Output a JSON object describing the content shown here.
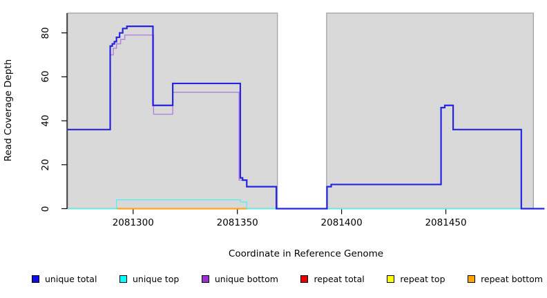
{
  "axes": {
    "x_label": "Coordinate in Reference Genome",
    "y_label": "Read Coverage Depth"
  },
  "legend": {
    "items": [
      {
        "label": "unique total",
        "swatch": "#0d0de8"
      },
      {
        "label": "unique top",
        "swatch": "#00ffff"
      },
      {
        "label": "unique bottom",
        "swatch": "#9932cc"
      },
      {
        "label": "repeat total",
        "swatch": "#e80000"
      },
      {
        "label": "repeat top",
        "swatch": "#ffff00"
      },
      {
        "label": "repeat bottom",
        "swatch": "#ffa500"
      }
    ]
  },
  "chart_data": {
    "type": "line",
    "title": "",
    "xlabel": "Coordinate in Reference Genome",
    "ylabel": "Read Coverage Depth",
    "xlim": [
      2081268.6,
      2081497.3
    ],
    "ylim": [
      0,
      89
    ],
    "x_ticks": [
      2081300,
      2081350,
      2081400,
      2081450
    ],
    "y_ticks": [
      0,
      20,
      40,
      60,
      80
    ],
    "grid": false,
    "legend_position": "bottom",
    "plot_background": {
      "fill": "#d9d9d9",
      "border": "#a6a6a6",
      "regions": [
        [
          2081268.6,
          2081369.2
        ],
        [
          2081392.8,
          2081492.0
        ]
      ]
    },
    "series": [
      {
        "name": "baseline",
        "in_legend": false,
        "color": "#7cc97c",
        "width": 1.4,
        "points": [
          [
            2081268.6,
            0
          ],
          [
            2081497.3,
            0
          ]
        ]
      },
      {
        "name": "repeat total",
        "in_legend": true,
        "color": "#e80000",
        "width": 1.4,
        "points": [
          [
            2081292.5,
            0
          ],
          [
            2081355,
            0
          ]
        ]
      },
      {
        "name": "repeat top",
        "in_legend": true,
        "color": "#ffff00",
        "width": 1.4,
        "points": [
          [
            2081292.5,
            0
          ],
          [
            2081355,
            0
          ]
        ]
      },
      {
        "name": "repeat bottom",
        "in_legend": true,
        "color": "#ffa520",
        "width": 2.2,
        "points": [
          [
            2081292.5,
            0
          ],
          [
            2081355,
            0
          ]
        ]
      },
      {
        "name": "unique top",
        "in_legend": true,
        "color": "#5ceeee",
        "width": 1.4,
        "points": [
          [
            2081268.6,
            0
          ],
          [
            2081292,
            4
          ],
          [
            2081351.5,
            3
          ],
          [
            2081354.5,
            0
          ],
          [
            2081497.3,
            0
          ]
        ]
      },
      {
        "name": "unique bottom",
        "in_legend": true,
        "color": "#b07edf",
        "width": 1.4,
        "points": [
          [
            2081268.6,
            36
          ],
          [
            2081289,
            70
          ],
          [
            2081290.5,
            73
          ],
          [
            2081292,
            75
          ],
          [
            2081294,
            77
          ],
          [
            2081296,
            79
          ],
          [
            2081309.8,
            43
          ],
          [
            2081319,
            53
          ],
          [
            2081350.8,
            13
          ],
          [
            2081354.5,
            10
          ],
          [
            2081368.7,
            0
          ],
          [
            2081393,
            10
          ],
          [
            2081395,
            11
          ],
          [
            2081447.7,
            46
          ],
          [
            2081449.5,
            47
          ],
          [
            2081453.5,
            36
          ],
          [
            2081486.2,
            0
          ],
          [
            2081497.3,
            0
          ]
        ]
      },
      {
        "name": "unique total",
        "in_legend": true,
        "color": "#2424e2",
        "width": 2.2,
        "points": [
          [
            2081268.6,
            36
          ],
          [
            2081289,
            74
          ],
          [
            2081290,
            75
          ],
          [
            2081291,
            76
          ],
          [
            2081292,
            78
          ],
          [
            2081293.5,
            80
          ],
          [
            2081295,
            82
          ],
          [
            2081297,
            83
          ],
          [
            2081309.5,
            47
          ],
          [
            2081319,
            57
          ],
          [
            2081351.4,
            14
          ],
          [
            2081352.5,
            13
          ],
          [
            2081354.5,
            10
          ],
          [
            2081368.7,
            0
          ],
          [
            2081393,
            10
          ],
          [
            2081395,
            11
          ],
          [
            2081447.7,
            46
          ],
          [
            2081449.5,
            47
          ],
          [
            2081453.5,
            36
          ],
          [
            2081486.2,
            0
          ],
          [
            2081497.3,
            0
          ]
        ]
      }
    ]
  }
}
